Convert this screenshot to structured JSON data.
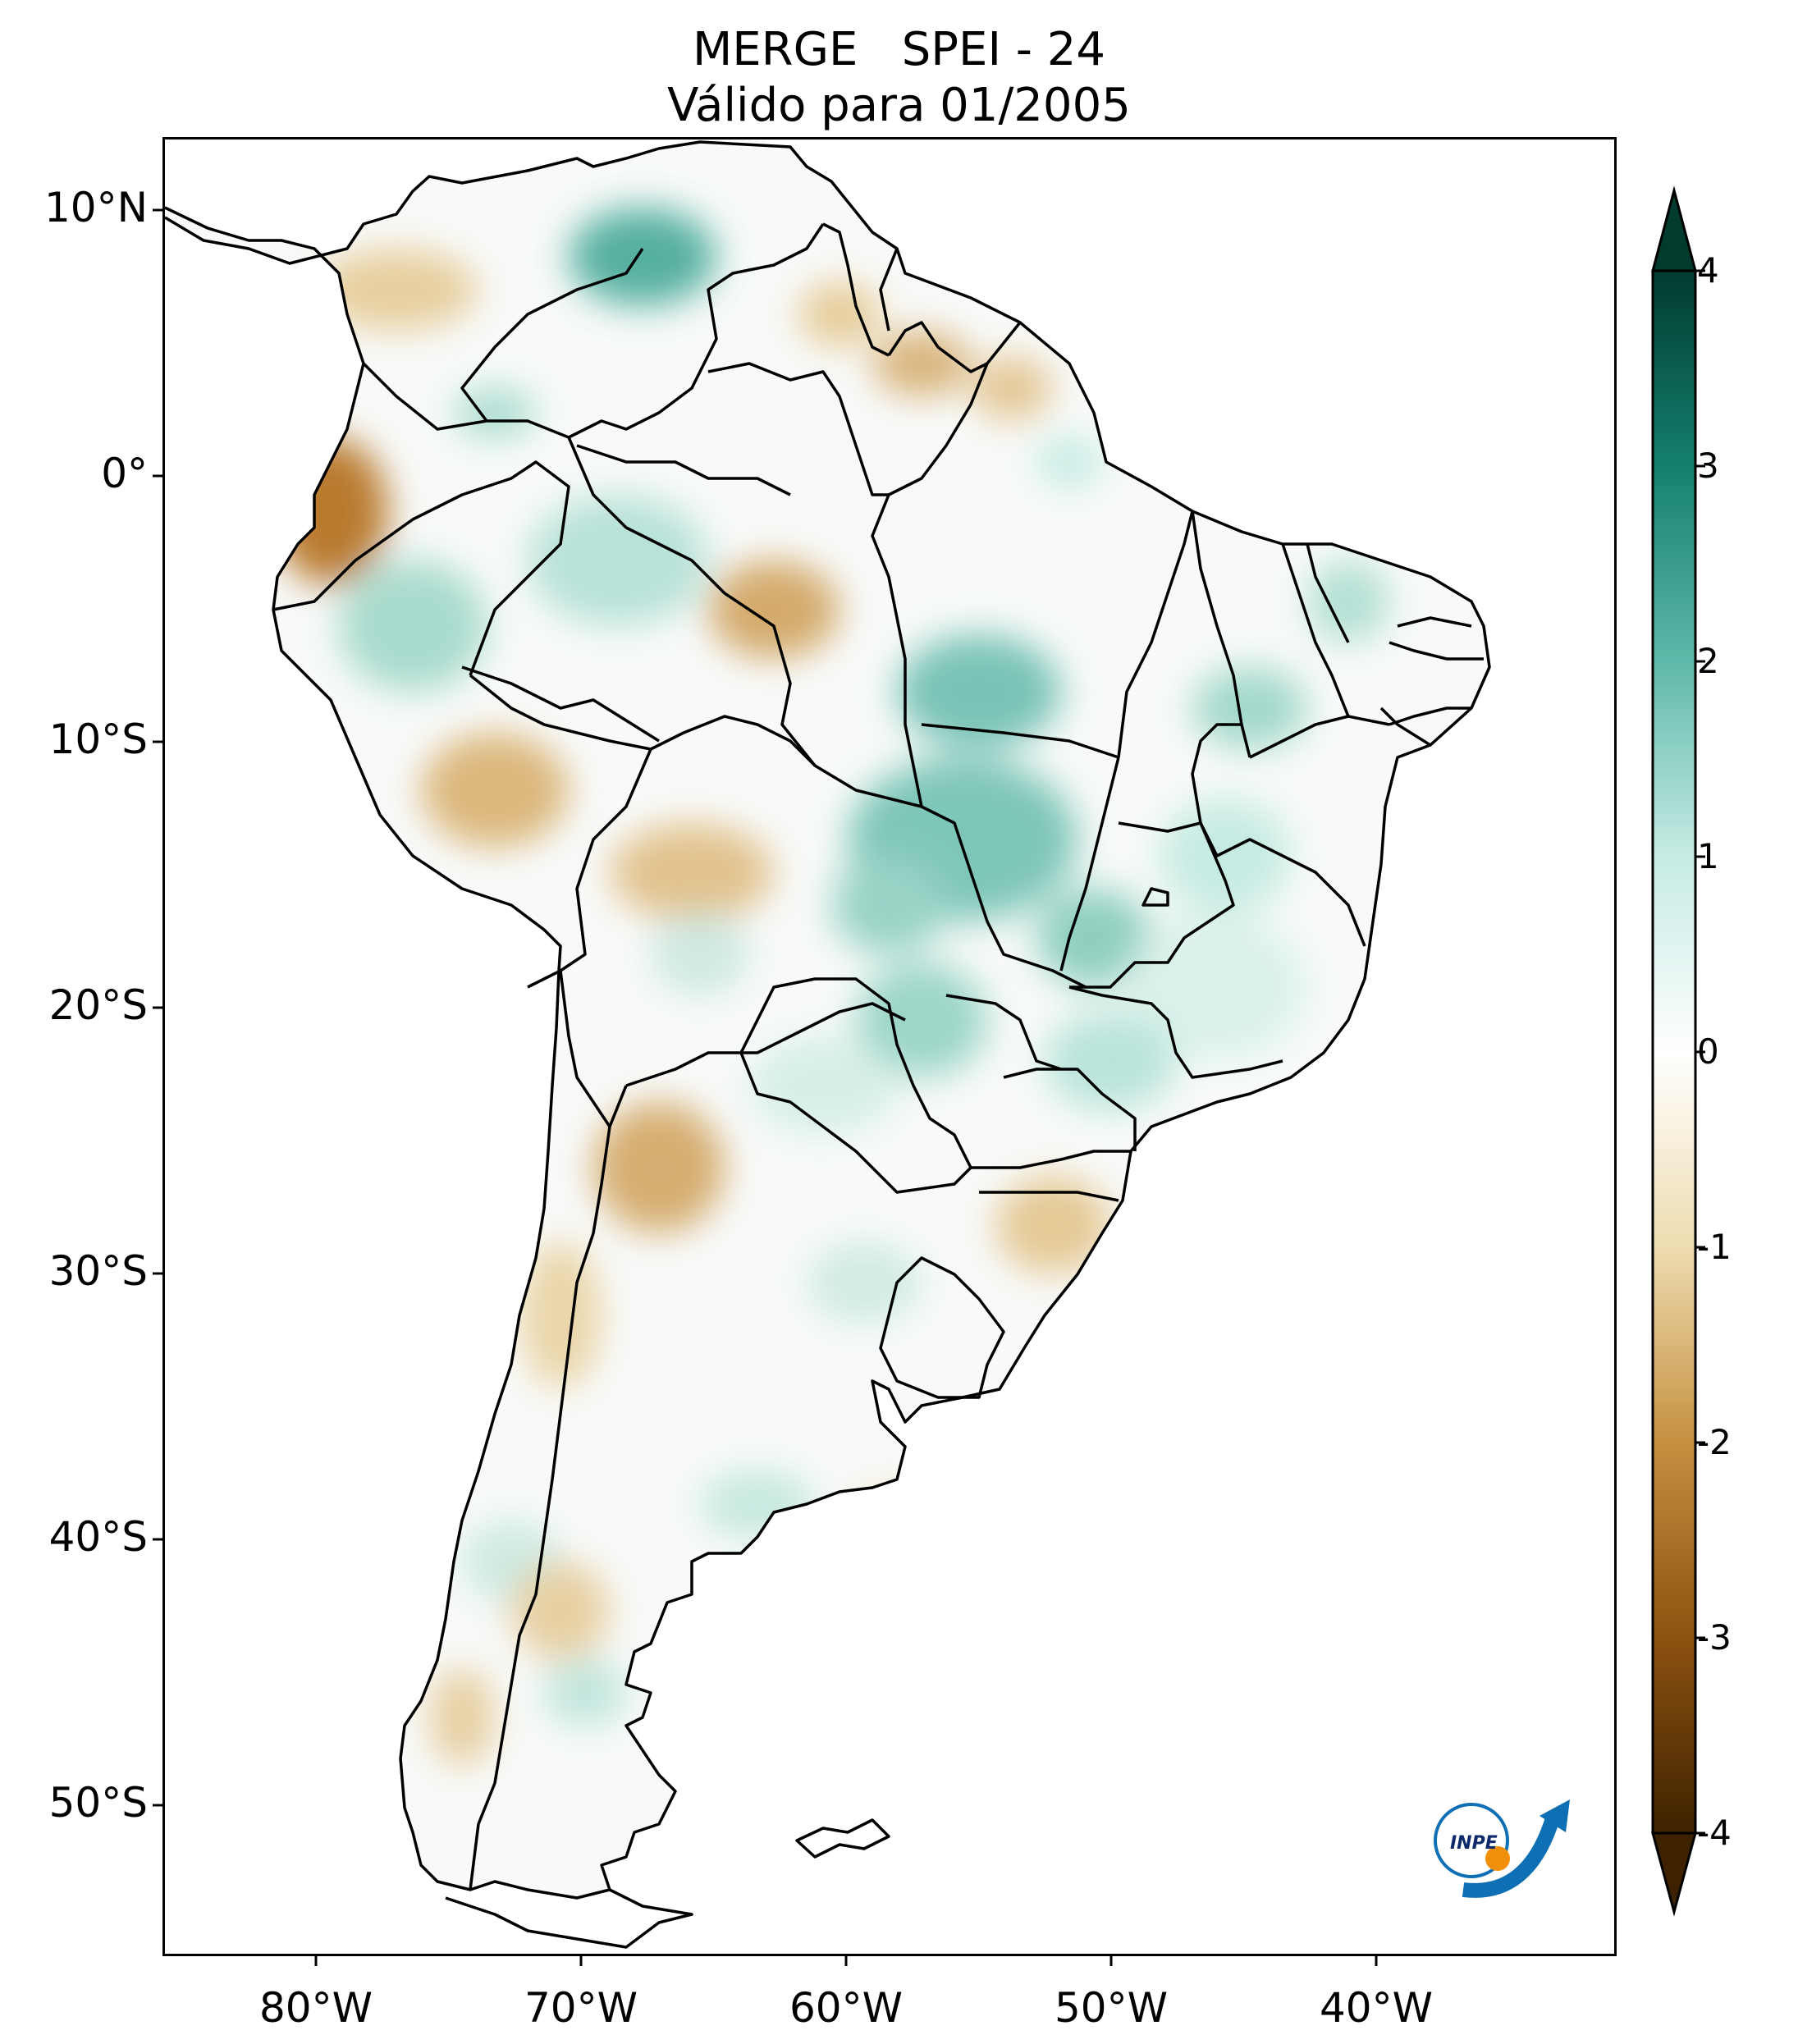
{
  "title": {
    "line1": "MERGE   SPEI - 24",
    "line2": "Válido para 01/2005"
  },
  "map": {
    "region": "South America",
    "variable": "SPEI - 24",
    "lat_ticks": [
      "10°N",
      "0°",
      "10°S",
      "20°S",
      "30°S",
      "40°S",
      "50°S"
    ],
    "lon_ticks": [
      "80°W",
      "70°W",
      "60°W",
      "50°W",
      "40°W"
    ]
  },
  "colorbar": {
    "ticks": [
      "4",
      "3",
      "2",
      "1",
      "0",
      "-1",
      "-2",
      "-3",
      "-4"
    ],
    "min": -4,
    "max": 4,
    "extend": "both",
    "colors": [
      "#3e2200",
      "#8c5210",
      "#c59040",
      "#eedcb0",
      "#ffffff",
      "#c6ebe4",
      "#5fb9aa",
      "#15806f",
      "#003b2e"
    ]
  },
  "logo": {
    "text": "INPE",
    "colors": {
      "blue": "#0e6fb5",
      "orange": "#f0900a"
    }
  }
}
